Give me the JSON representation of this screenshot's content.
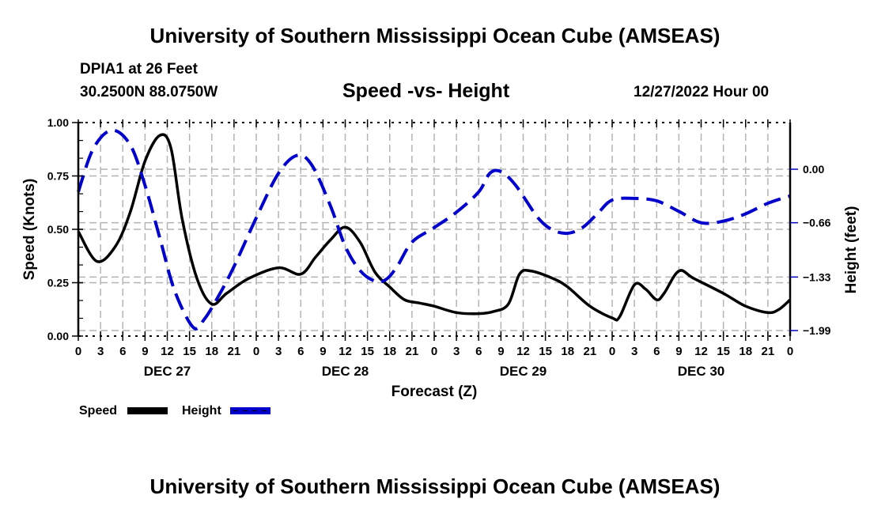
{
  "header": {
    "title": "University of Southern Mississippi Ocean Cube (AMSEAS)",
    "station": "DPIA1 at 26 Feet",
    "location": "30.2500N  88.0750W",
    "subtitle": "Speed -vs- Height",
    "datetime": "12/27/2022 Hour 00"
  },
  "footer": {
    "title": "University of Southern Mississippi Ocean Cube (AMSEAS)"
  },
  "chart_data": {
    "type": "line",
    "title": "Speed -vs- Height",
    "xlabel": "Forecast (Z)",
    "ylabel": "Speed (Knots)",
    "y2label": "Height (feet)",
    "xlim": [
      0,
      96
    ],
    "ylim": [
      0,
      1.0
    ],
    "y2lim": [
      -1.99,
      0.66
    ],
    "x_ticks": [
      0,
      3,
      6,
      9,
      12,
      15,
      18,
      21,
      24,
      27,
      30,
      33,
      36,
      39,
      42,
      45,
      48,
      51,
      54,
      57,
      60,
      63,
      66,
      69,
      72,
      75,
      78,
      81,
      84,
      87,
      90,
      93,
      96
    ],
    "x_tick_labels": [
      "0",
      "3",
      "6",
      "9",
      "12",
      "15",
      "18",
      "21",
      "0",
      "3",
      "6",
      "9",
      "12",
      "15",
      "18",
      "21",
      "0",
      "3",
      "6",
      "9",
      "12",
      "15",
      "18",
      "21",
      "0",
      "3",
      "6",
      "9",
      "12",
      "15",
      "18",
      "21",
      "0"
    ],
    "date_labels": [
      {
        "hour": 12,
        "label": "DEC 27"
      },
      {
        "hour": 36,
        "label": "DEC 28"
      },
      {
        "hour": 60,
        "label": "DEC 29"
      },
      {
        "hour": 84,
        "label": "DEC 30"
      }
    ],
    "y_ticks": [
      0.0,
      0.25,
      0.5,
      0.75,
      1.0
    ],
    "y_tick_labels": [
      "0.00",
      "0.25",
      "0.50",
      "0.75",
      "1.00"
    ],
    "y2_ticks": [
      0.0,
      -0.66,
      -1.33,
      -1.99
    ],
    "y2_tick_labels": [
      "0.00",
      "−0.66",
      "−1.33",
      "−1.99"
    ],
    "grid": true,
    "legend": {
      "placement": "bottom-left"
    },
    "series": [
      {
        "name": "Speed",
        "axis": "left",
        "color": "#000000",
        "style": "solid",
        "x": [
          0,
          2.5,
          5,
          7,
          9,
          11,
          12.5,
          14,
          16,
          18,
          20,
          23,
          27,
          30,
          32,
          34,
          36,
          38,
          40,
          42,
          44,
          46,
          48,
          51,
          54,
          56,
          58,
          59.5,
          61,
          64,
          66,
          69,
          72,
          73,
          75,
          76.5,
          78,
          79,
          81,
          83,
          87,
          90,
          93,
          94.5,
          96
        ],
        "values": [
          0.49,
          0.35,
          0.42,
          0.58,
          0.82,
          0.94,
          0.88,
          0.55,
          0.27,
          0.15,
          0.2,
          0.27,
          0.32,
          0.29,
          0.37,
          0.45,
          0.51,
          0.44,
          0.3,
          0.23,
          0.17,
          0.155,
          0.14,
          0.11,
          0.105,
          0.115,
          0.15,
          0.29,
          0.305,
          0.27,
          0.23,
          0.14,
          0.085,
          0.09,
          0.24,
          0.22,
          0.17,
          0.2,
          0.305,
          0.27,
          0.2,
          0.14,
          0.11,
          0.125,
          0.17
        ]
      },
      {
        "name": "Height",
        "axis": "right",
        "color": "#0000cc",
        "style": "dashed",
        "x": [
          0,
          2,
          4.5,
          7,
          9,
          11,
          13,
          15.5,
          17,
          19,
          21,
          24,
          27,
          29.5,
          31.5,
          34,
          36,
          38,
          40,
          41.5,
          43,
          45,
          48,
          51,
          54,
          55.5,
          57,
          59,
          62,
          64,
          66,
          68,
          70,
          72,
          75,
          78,
          81,
          84,
          87,
          90,
          93,
          96
        ],
        "values": [
          -0.28,
          0.25,
          0.48,
          0.3,
          -0.2,
          -0.85,
          -1.5,
          -1.95,
          -1.85,
          -1.55,
          -1.2,
          -0.6,
          -0.05,
          0.17,
          0.05,
          -0.45,
          -0.95,
          -1.25,
          -1.38,
          -1.36,
          -1.2,
          -0.9,
          -0.72,
          -0.53,
          -0.28,
          -0.05,
          -0.03,
          -0.2,
          -0.6,
          -0.75,
          -0.79,
          -0.72,
          -0.55,
          -0.38,
          -0.36,
          -0.39,
          -0.52,
          -0.66,
          -0.64,
          -0.55,
          -0.42,
          -0.33
        ]
      }
    ]
  }
}
